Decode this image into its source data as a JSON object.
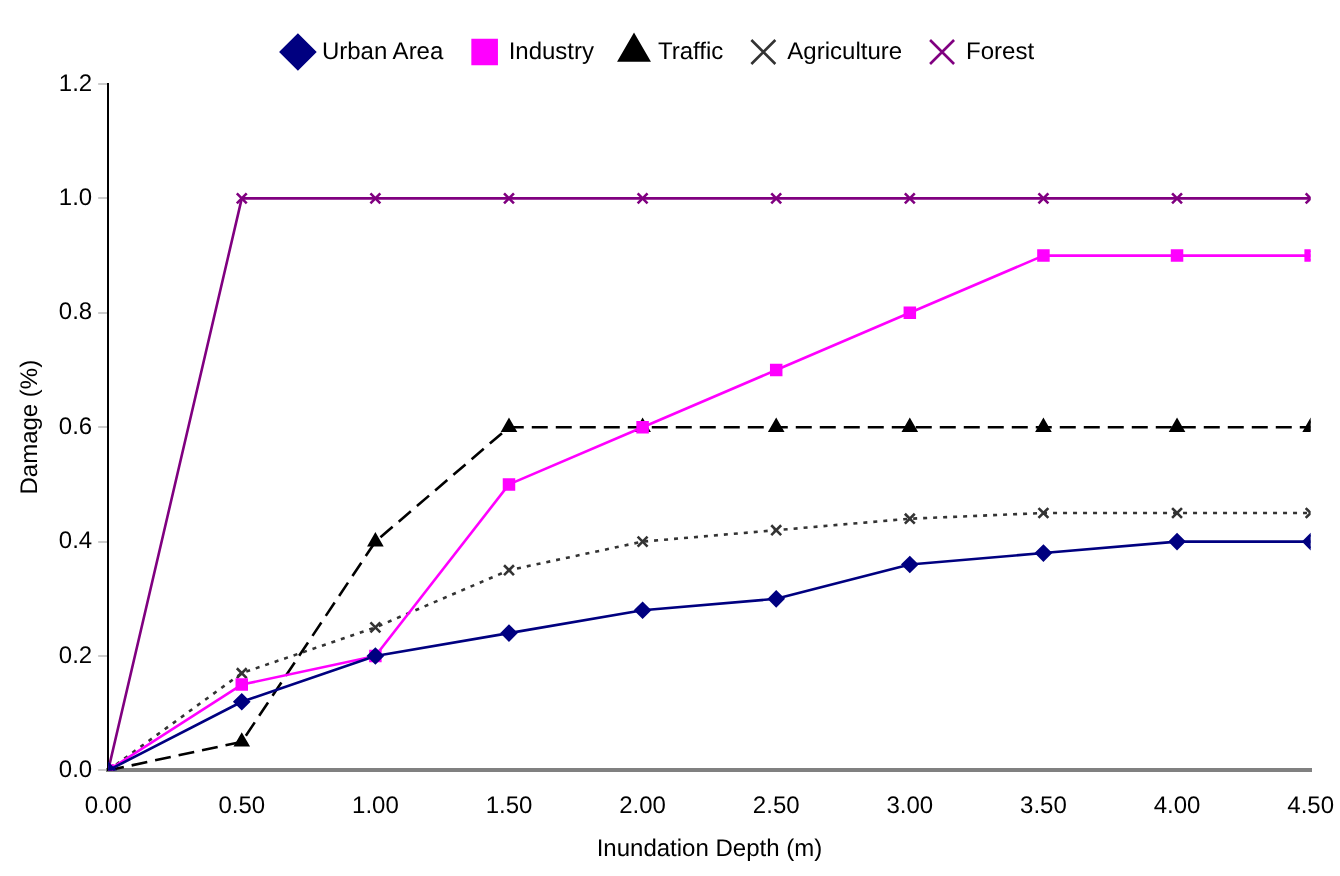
{
  "chart_data": {
    "type": "line",
    "xlabel": "Inundation Depth (m)",
    "ylabel": "Damage (%)",
    "x": [
      0,
      0.5,
      1,
      1.5,
      2,
      2.5,
      3,
      3.5,
      4,
      4.5
    ],
    "series": [
      {
        "name": "Urban Area",
        "color": "#000080",
        "marker": "diamond",
        "line_style": "solid",
        "values": [
          0,
          0.12,
          0.2,
          0.24,
          0.28,
          0.3,
          0.36,
          0.38,
          0.4,
          0.4
        ]
      },
      {
        "name": "Industry",
        "color": "#ff00ff",
        "marker": "square",
        "line_style": "solid",
        "values": [
          0,
          0.15,
          0.2,
          0.5,
          0.6,
          0.7,
          0.8,
          0.9,
          0.9,
          0.9
        ]
      },
      {
        "name": "Traffic",
        "color": "#000000",
        "marker": "triangle",
        "line_style": "dashed",
        "values": [
          0,
          0.05,
          0.4,
          0.6,
          0.6,
          0.6,
          0.6,
          0.6,
          0.6,
          0.6
        ]
      },
      {
        "name": "Agriculture",
        "color": "#333333",
        "marker": "cross",
        "line_style": "dotted",
        "values": [
          0,
          0.17,
          0.25,
          0.35,
          0.4,
          0.42,
          0.44,
          0.45,
          0.45,
          0.45
        ]
      },
      {
        "name": "Forest",
        "color": "#800080",
        "marker": "cross",
        "line_style": "solid",
        "values": [
          0,
          1,
          1,
          1,
          1,
          1,
          1,
          1,
          1,
          1
        ]
      }
    ],
    "xlim": [
      0,
      4.5
    ],
    "xticks": [
      {
        "value": 0,
        "label": "0.00"
      },
      {
        "value": 0.5,
        "label": "0.50"
      },
      {
        "value": 1,
        "label": "1.00"
      },
      {
        "value": 1.5,
        "label": "1.50"
      },
      {
        "value": 2,
        "label": "2.00"
      },
      {
        "value": 2.5,
        "label": "2.50"
      },
      {
        "value": 3,
        "label": "3.00"
      },
      {
        "value": 3.5,
        "label": "3.50"
      },
      {
        "value": 4,
        "label": "4.00"
      },
      {
        "value": 4.5,
        "label": "4.50"
      }
    ],
    "ylim": [
      0,
      1.2
    ],
    "yticks": [
      {
        "value": 0,
        "label": "0.0"
      },
      {
        "value": 0.2,
        "label": "0.2"
      },
      {
        "value": 0.4,
        "label": "0.4"
      },
      {
        "value": 0.6,
        "label": "0.6"
      },
      {
        "value": 0.8,
        "label": "0.8"
      },
      {
        "value": 1,
        "label": "1.0"
      },
      {
        "value": 1.2,
        "label": "1.2"
      }
    ],
    "grid": false,
    "legend": "top"
  }
}
